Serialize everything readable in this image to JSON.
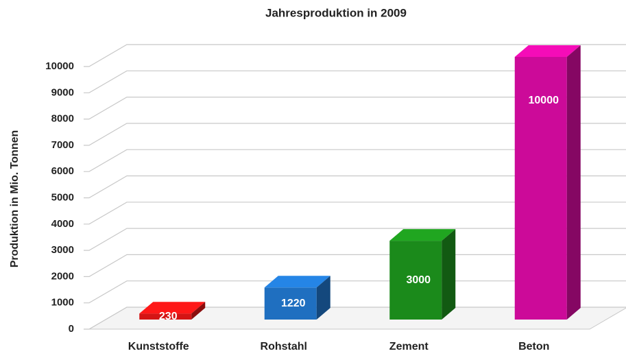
{
  "chart_data": {
    "type": "bar3d",
    "title": "Jahresproduktion in 2009",
    "ylabel": "Produktion in Mio. Tonnen",
    "categories": [
      "Kunststoffe",
      "Rohstahl",
      "Zement",
      "Beton"
    ],
    "values": [
      230,
      1220,
      3000,
      10000
    ],
    "colors": [
      "#d41414",
      "#1f6fc0",
      "#1b8a1b",
      "#cc0a99"
    ],
    "ylim": [
      0,
      10000
    ],
    "yticks": [
      0,
      1000,
      2000,
      3000,
      4000,
      5000,
      6000,
      7000,
      8000,
      9000,
      10000
    ],
    "grid": true
  }
}
